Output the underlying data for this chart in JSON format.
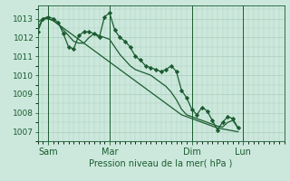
{
  "xlabel": "Pression niveau de la mer( hPa )",
  "bg_color": "#cce8dc",
  "grid_color": "#aaccbb",
  "line_color": "#1a5c30",
  "ylim": [
    1006.5,
    1013.7
  ],
  "yticks": [
    1007,
    1008,
    1009,
    1010,
    1011,
    1012,
    1013
  ],
  "xtick_labels": [
    "Sam",
    "Mar",
    "Dim",
    "Lun"
  ],
  "xtick_positions": [
    2,
    14,
    30,
    40
  ],
  "vline_positions": [
    2,
    14,
    30,
    40
  ],
  "xlim": [
    0,
    48
  ],
  "series_jagged": [
    1012.3,
    1013.0,
    1013.1,
    1013.0,
    1012.8,
    1012.2,
    1011.5,
    1011.4,
    1012.1,
    1012.3,
    1012.3,
    1012.2,
    1012.0,
    1013.1,
    1013.3,
    1012.4,
    1012.0,
    1011.8,
    1011.5,
    1011.0,
    1010.8,
    1010.5,
    1010.4,
    1010.3,
    1010.2,
    1010.3,
    1010.5,
    1010.2,
    1009.2,
    1008.8,
    1008.2,
    1007.9,
    1008.3,
    1008.1,
    1007.6,
    1007.1,
    1007.5,
    1007.8,
    1007.7,
    1007.2
  ],
  "series_straight": [
    1012.8,
    1013.0,
    1013.0,
    1012.9,
    1012.7,
    1012.5,
    1012.3,
    1012.1,
    1011.9,
    1011.7,
    1011.5,
    1011.3,
    1011.1,
    1010.9,
    1010.7,
    1010.5,
    1010.3,
    1010.1,
    1009.9,
    1009.7,
    1009.5,
    1009.3,
    1009.1,
    1008.9,
    1008.7,
    1008.5,
    1008.3,
    1008.1,
    1007.9,
    1007.8,
    1007.7,
    1007.6,
    1007.5,
    1007.4,
    1007.3,
    1007.2,
    1007.15,
    1007.1,
    1007.05,
    1007.0
  ],
  "series_middle": [
    1012.5,
    1013.0,
    1013.0,
    1012.9,
    1012.7,
    1012.4,
    1012.1,
    1011.8,
    1011.7,
    1011.7,
    1012.0,
    1012.2,
    1012.1,
    1012.0,
    1011.9,
    1011.5,
    1011.1,
    1010.8,
    1010.5,
    1010.3,
    1010.2,
    1010.1,
    1010.0,
    1009.8,
    1009.6,
    1009.4,
    1009.1,
    1008.7,
    1008.2,
    1007.9,
    1007.8,
    1007.7,
    1007.6,
    1007.5,
    1007.4,
    1007.3,
    1007.25,
    1007.5,
    1007.6,
    1007.2
  ]
}
